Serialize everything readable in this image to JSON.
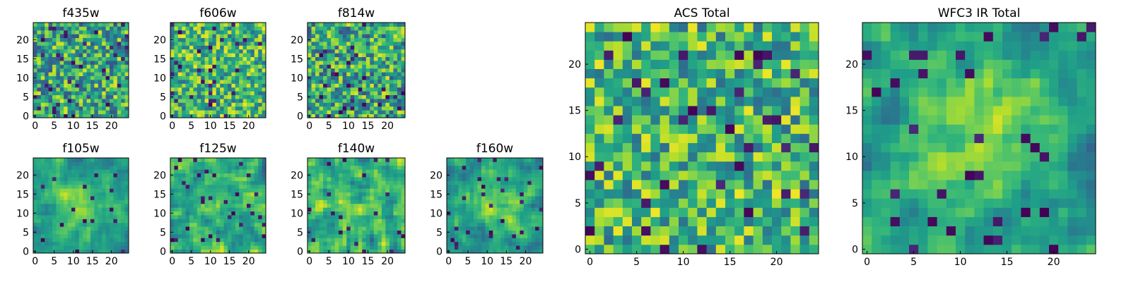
{
  "chart_data": [
    {
      "type": "heatmap",
      "title": "f435w",
      "grid_size": 25,
      "xticks": [
        "0",
        "5",
        "10",
        "15",
        "20"
      ],
      "yticks": [
        "0",
        "5",
        "10",
        "15",
        "20"
      ],
      "xlim": [
        -0.5,
        24.5
      ],
      "ylim": [
        -0.5,
        24.5
      ],
      "colormap": "viridis",
      "pattern": "noise",
      "seed": 11
    },
    {
      "type": "heatmap",
      "title": "f606w",
      "grid_size": 25,
      "xticks": [
        "0",
        "5",
        "10",
        "15",
        "20"
      ],
      "yticks": [
        "0",
        "5",
        "10",
        "15",
        "20"
      ],
      "xlim": [
        -0.5,
        24.5
      ],
      "ylim": [
        -0.5,
        24.5
      ],
      "colormap": "viridis",
      "pattern": "noise-bright",
      "seed": 23
    },
    {
      "type": "heatmap",
      "title": "f814w",
      "grid_size": 25,
      "xticks": [
        "0",
        "5",
        "10",
        "15",
        "20"
      ],
      "yticks": [
        "0",
        "5",
        "10",
        "15",
        "20"
      ],
      "xlim": [
        -0.5,
        24.5
      ],
      "ylim": [
        -0.5,
        24.5
      ],
      "colormap": "viridis",
      "pattern": "noise",
      "seed": 37
    },
    {
      "type": "heatmap",
      "title": "f105w",
      "grid_size": 25,
      "xticks": [
        "0",
        "5",
        "10",
        "15",
        "20"
      ],
      "yticks": [
        "0",
        "5",
        "10",
        "15",
        "20"
      ],
      "xlim": [
        -0.5,
        24.5
      ],
      "ylim": [
        -0.5,
        24.5
      ],
      "colormap": "viridis",
      "pattern": "smooth-peak",
      "seed": 41
    },
    {
      "type": "heatmap",
      "title": "f125w",
      "grid_size": 25,
      "xticks": [
        "0",
        "5",
        "10",
        "15",
        "20"
      ],
      "yticks": [
        "0",
        "5",
        "10",
        "15",
        "20"
      ],
      "xlim": [
        -0.5,
        24.5
      ],
      "ylim": [
        -0.5,
        24.5
      ],
      "colormap": "viridis",
      "pattern": "smooth",
      "seed": 53
    },
    {
      "type": "heatmap",
      "title": "f140w",
      "grid_size": 25,
      "xticks": [
        "0",
        "5",
        "10",
        "15",
        "20"
      ],
      "yticks": [
        "0",
        "5",
        "10",
        "15",
        "20"
      ],
      "xlim": [
        -0.5,
        24.5
      ],
      "ylim": [
        -0.5,
        24.5
      ],
      "colormap": "viridis",
      "pattern": "smooth",
      "seed": 67
    },
    {
      "type": "heatmap",
      "title": "f160w",
      "grid_size": 25,
      "xticks": [
        "0",
        "5",
        "10",
        "15",
        "20"
      ],
      "yticks": [
        "0",
        "5",
        "10",
        "15",
        "20"
      ],
      "xlim": [
        -0.5,
        24.5
      ],
      "ylim": [
        -0.5,
        24.5
      ],
      "colormap": "viridis",
      "pattern": "smooth-peak",
      "seed": 79
    },
    {
      "type": "heatmap",
      "title": "ACS Total",
      "grid_size": 25,
      "xticks": [
        "0",
        "5",
        "10",
        "15",
        "20"
      ],
      "yticks": [
        "0",
        "5",
        "10",
        "15",
        "20"
      ],
      "xlim": [
        -0.5,
        24.5
      ],
      "ylim": [
        -0.5,
        24.5
      ],
      "colormap": "viridis",
      "pattern": "noise-bright",
      "seed": 97
    },
    {
      "type": "heatmap",
      "title": "WFC3 IR Total",
      "grid_size": 25,
      "xticks": [
        "0",
        "5",
        "10",
        "15",
        "20"
      ],
      "yticks": [
        "0",
        "5",
        "10",
        "15",
        "20"
      ],
      "xlim": [
        -0.5,
        24.5
      ],
      "ylim": [
        -0.5,
        24.5
      ],
      "colormap": "viridis",
      "pattern": "smooth-peak",
      "seed": 113
    }
  ]
}
